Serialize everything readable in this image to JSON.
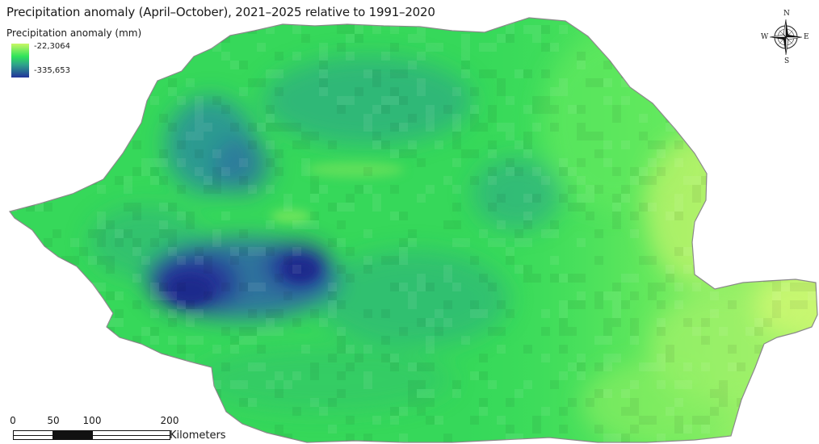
{
  "map": {
    "title": "Precipitation anomaly (April–October), 2021–2025 relative to 1991–2020",
    "colors": {
      "outline": "#8a8a8a",
      "background": "#ffffff"
    }
  },
  "legend": {
    "title": "Precipitation anomaly (mm)",
    "max_label": "-22,3064",
    "min_label": "-335,653",
    "max_value": -22.3064,
    "min_value": -335.653,
    "ramp_colors": [
      "#c9f765",
      "#2fe35a",
      "#2ea38a",
      "#23339a"
    ]
  },
  "compass": {
    "north": "N",
    "south": "S",
    "west": "W",
    "east": "E",
    "icon": "compass-rose-icon"
  },
  "scale_bar": {
    "ticks": [
      "0",
      "50",
      "100",
      "200"
    ],
    "units": "Kilometers"
  }
}
